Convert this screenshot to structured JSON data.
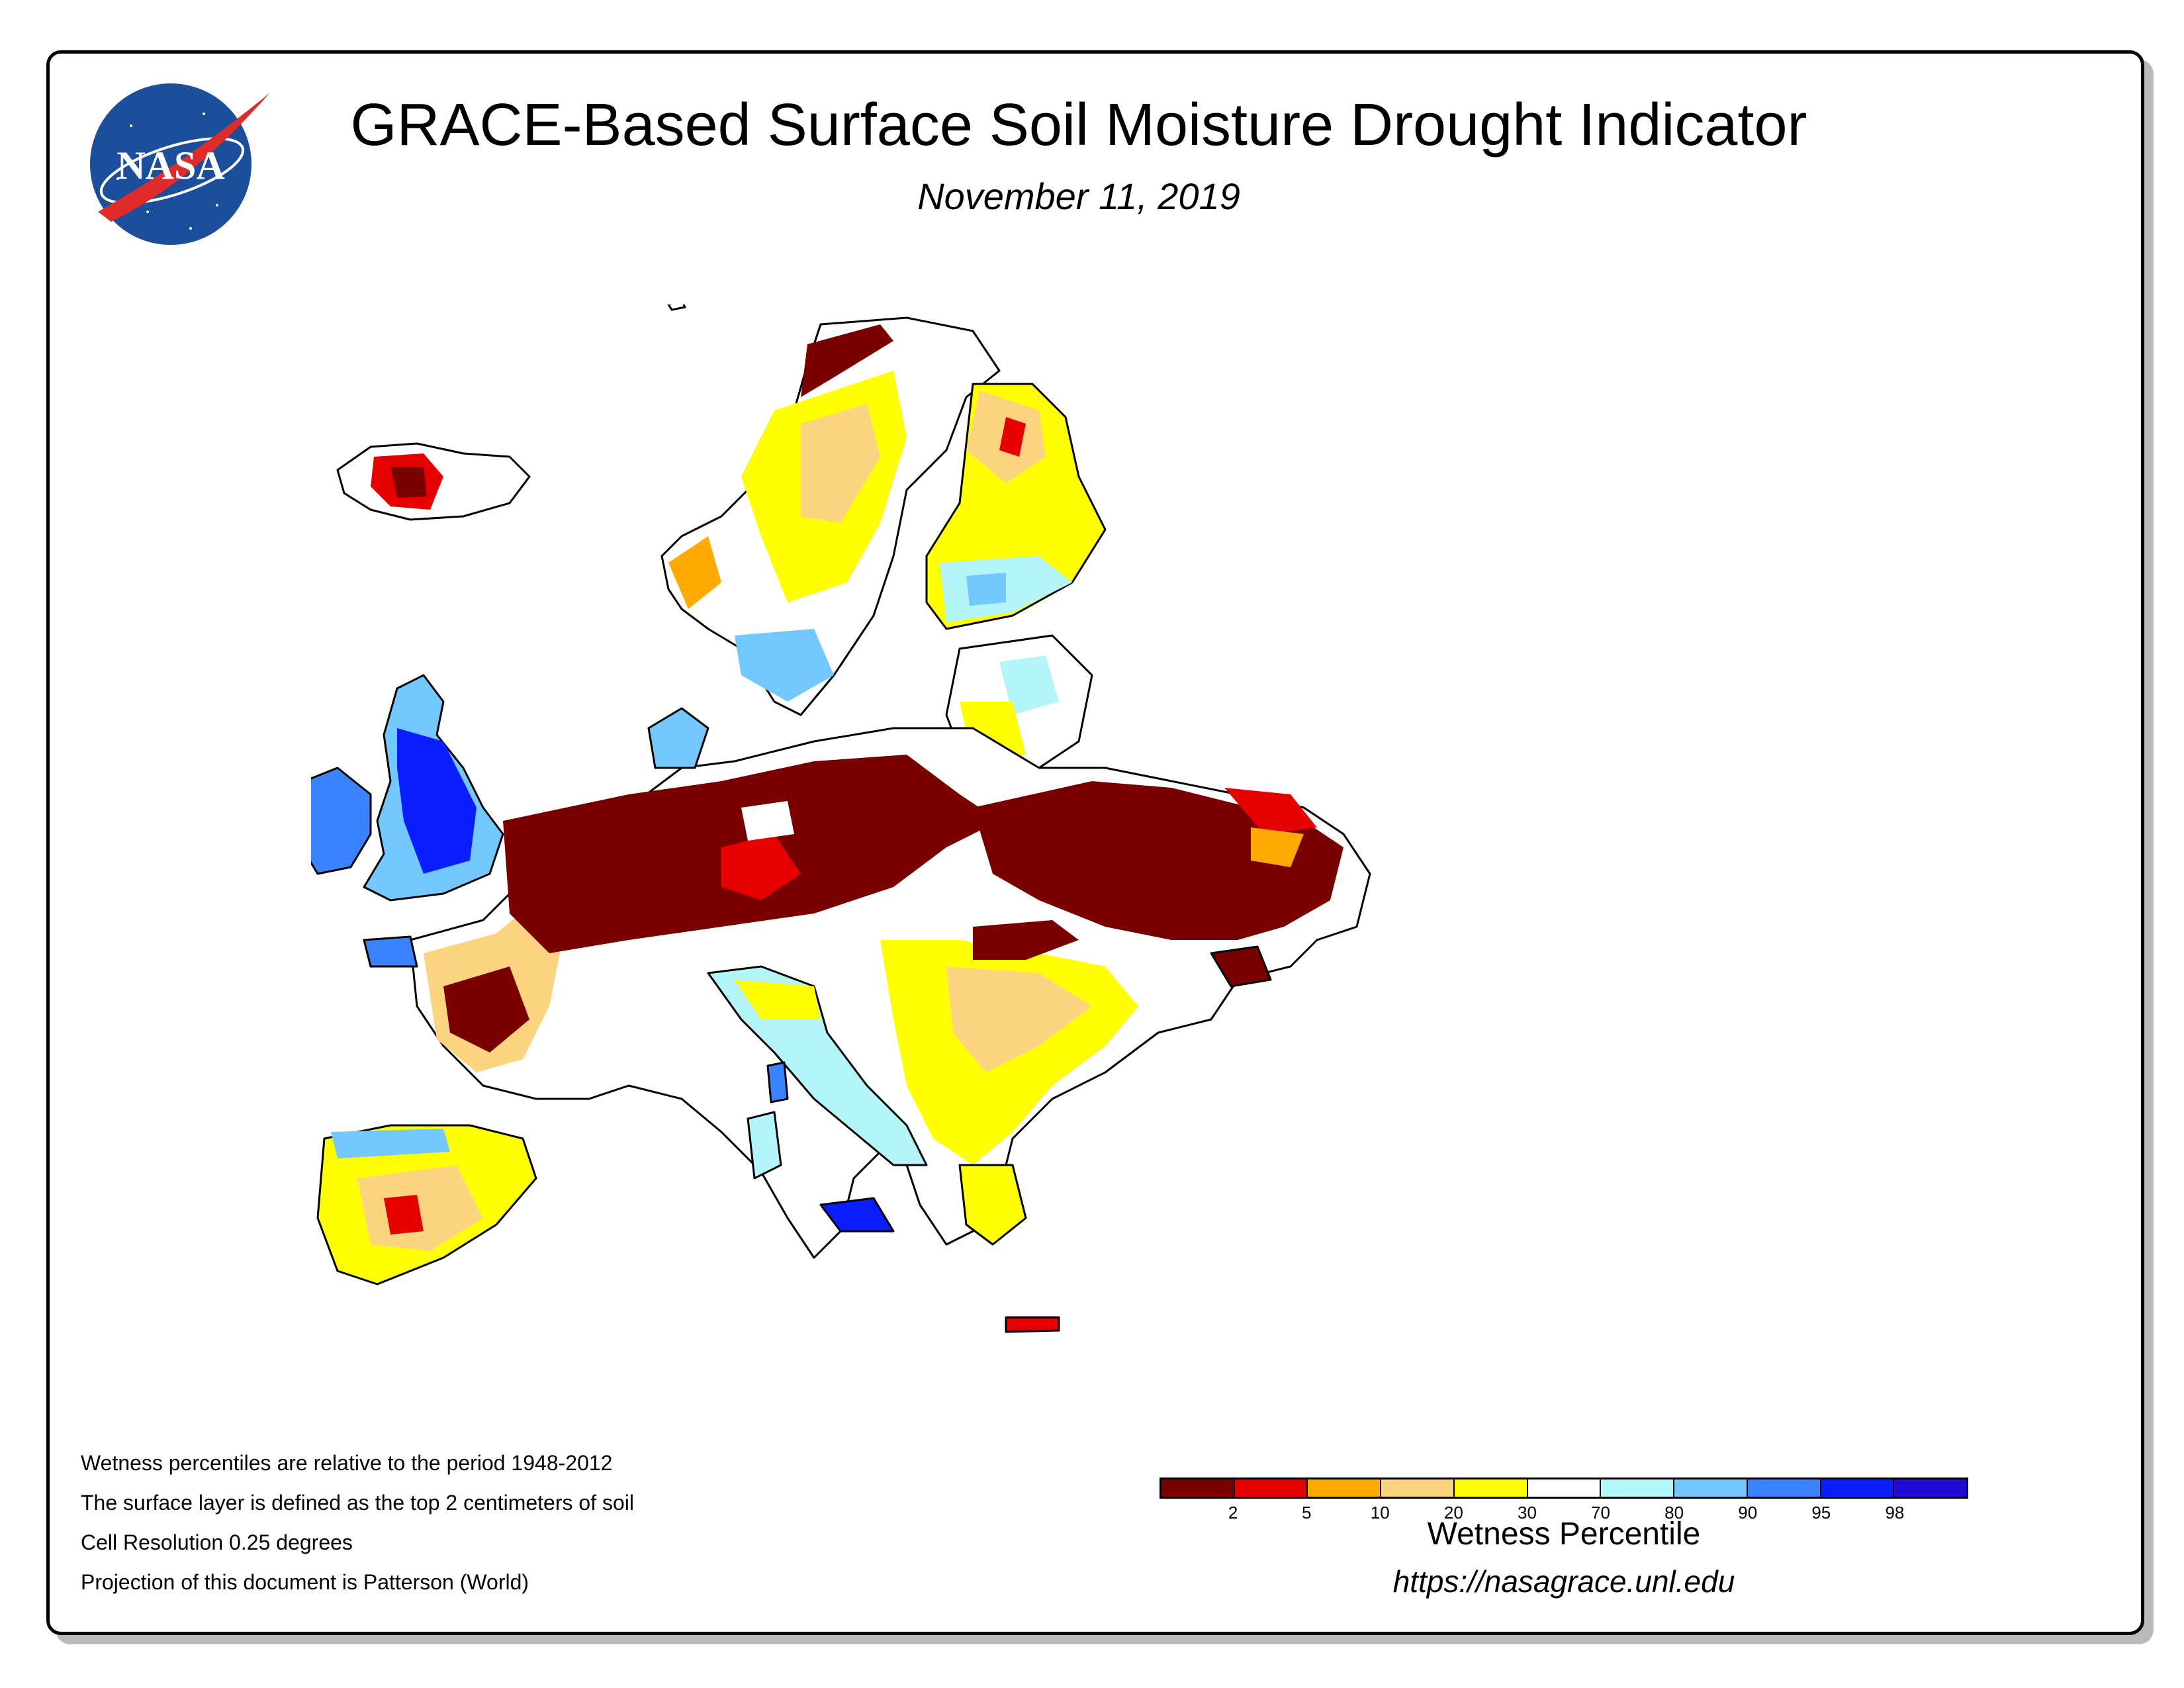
{
  "header": {
    "title": "GRACE-Based Surface Soil Moisture Drought Indicator",
    "date": "November 11, 2019"
  },
  "logo": {
    "text": "NASA",
    "colors": {
      "disc": "#1b4f9c",
      "swoosh": "#e02b2b"
    }
  },
  "notes": [
    "Wetness percentiles are relative to the period 1948-2012",
    "The surface layer is defined as the top 2 centimeters of soil",
    "Cell Resolution 0.25 degrees",
    "Projection of this document is Patterson (World)"
  ],
  "legend": {
    "title": "Wetness Percentile",
    "ticks": [
      "2",
      "5",
      "10",
      "20",
      "30",
      "70",
      "80",
      "90",
      "95",
      "98"
    ],
    "colors": [
      "#7a0000",
      "#e60000",
      "#ffaa00",
      "#fcd37f",
      "#ffff00",
      "#ffffff",
      "#b4f5fa",
      "#73c8ff",
      "#3a82ff",
      "#0a1eff",
      "#1e0ad2"
    ]
  },
  "url": "https://nasagrace.unl.edu",
  "map": {
    "region": "Europe",
    "colors": {
      "sea": "#ffffff",
      "border": "#000000",
      "very_dry": "#7a0000",
      "dry": "#e60000",
      "moderate": "#ffaa00",
      "mild": "#fcd37f",
      "abnormal": "#ffff00",
      "normal": "#ffffff",
      "wet": "#b4f5fa",
      "wetter": "#73c8ff",
      "very_wet": "#3a82ff",
      "extreme_wet": "#0a1eff"
    }
  }
}
